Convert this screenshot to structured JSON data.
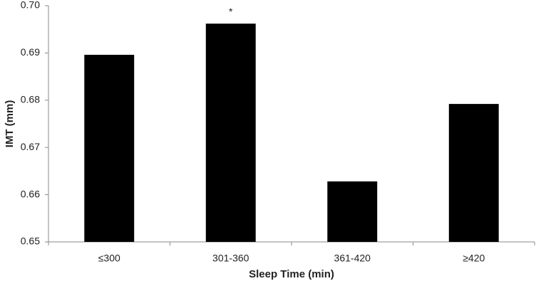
{
  "chart_data": {
    "type": "bar",
    "x_label": "Sleep Time (min)",
    "y_label": "IMT (mm)",
    "categories": [
      "≤300",
      "301-360",
      "361-420",
      "≥420"
    ],
    "values": [
      0.6896,
      0.6962,
      0.6628,
      0.6792
    ],
    "color": "#000000",
    "ylim": [
      0.65,
      0.7
    ],
    "yticks": [
      0.65,
      0.66,
      0.67,
      0.68,
      0.69,
      {
        "value": 0.7,
        "label": "0.70"
      }
    ],
    "grid": false,
    "annotations": [
      {
        "text": "*",
        "category": "301-360"
      }
    ]
  }
}
